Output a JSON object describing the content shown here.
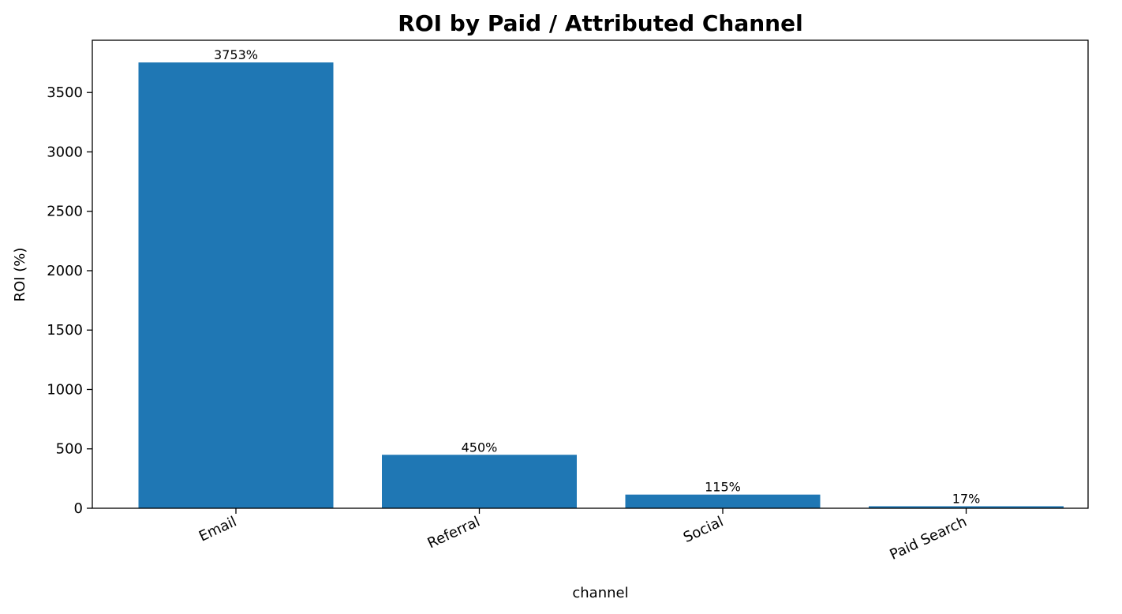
{
  "chart_data": {
    "type": "bar",
    "title": "ROI by Paid / Attributed Channel",
    "xlabel": "channel",
    "ylabel": "ROI (%)",
    "categories": [
      "Email",
      "Referral",
      "Social",
      "Paid Search"
    ],
    "values": [
      3753,
      450,
      115,
      17
    ],
    "value_labels": [
      "3753%",
      "450%",
      "115%",
      "17%"
    ],
    "ylim": [
      0,
      3940
    ],
    "yticks": [
      0,
      500,
      1000,
      1500,
      2000,
      2500,
      3000,
      3500
    ],
    "grid": false,
    "bar_color": "#1f77b4"
  }
}
